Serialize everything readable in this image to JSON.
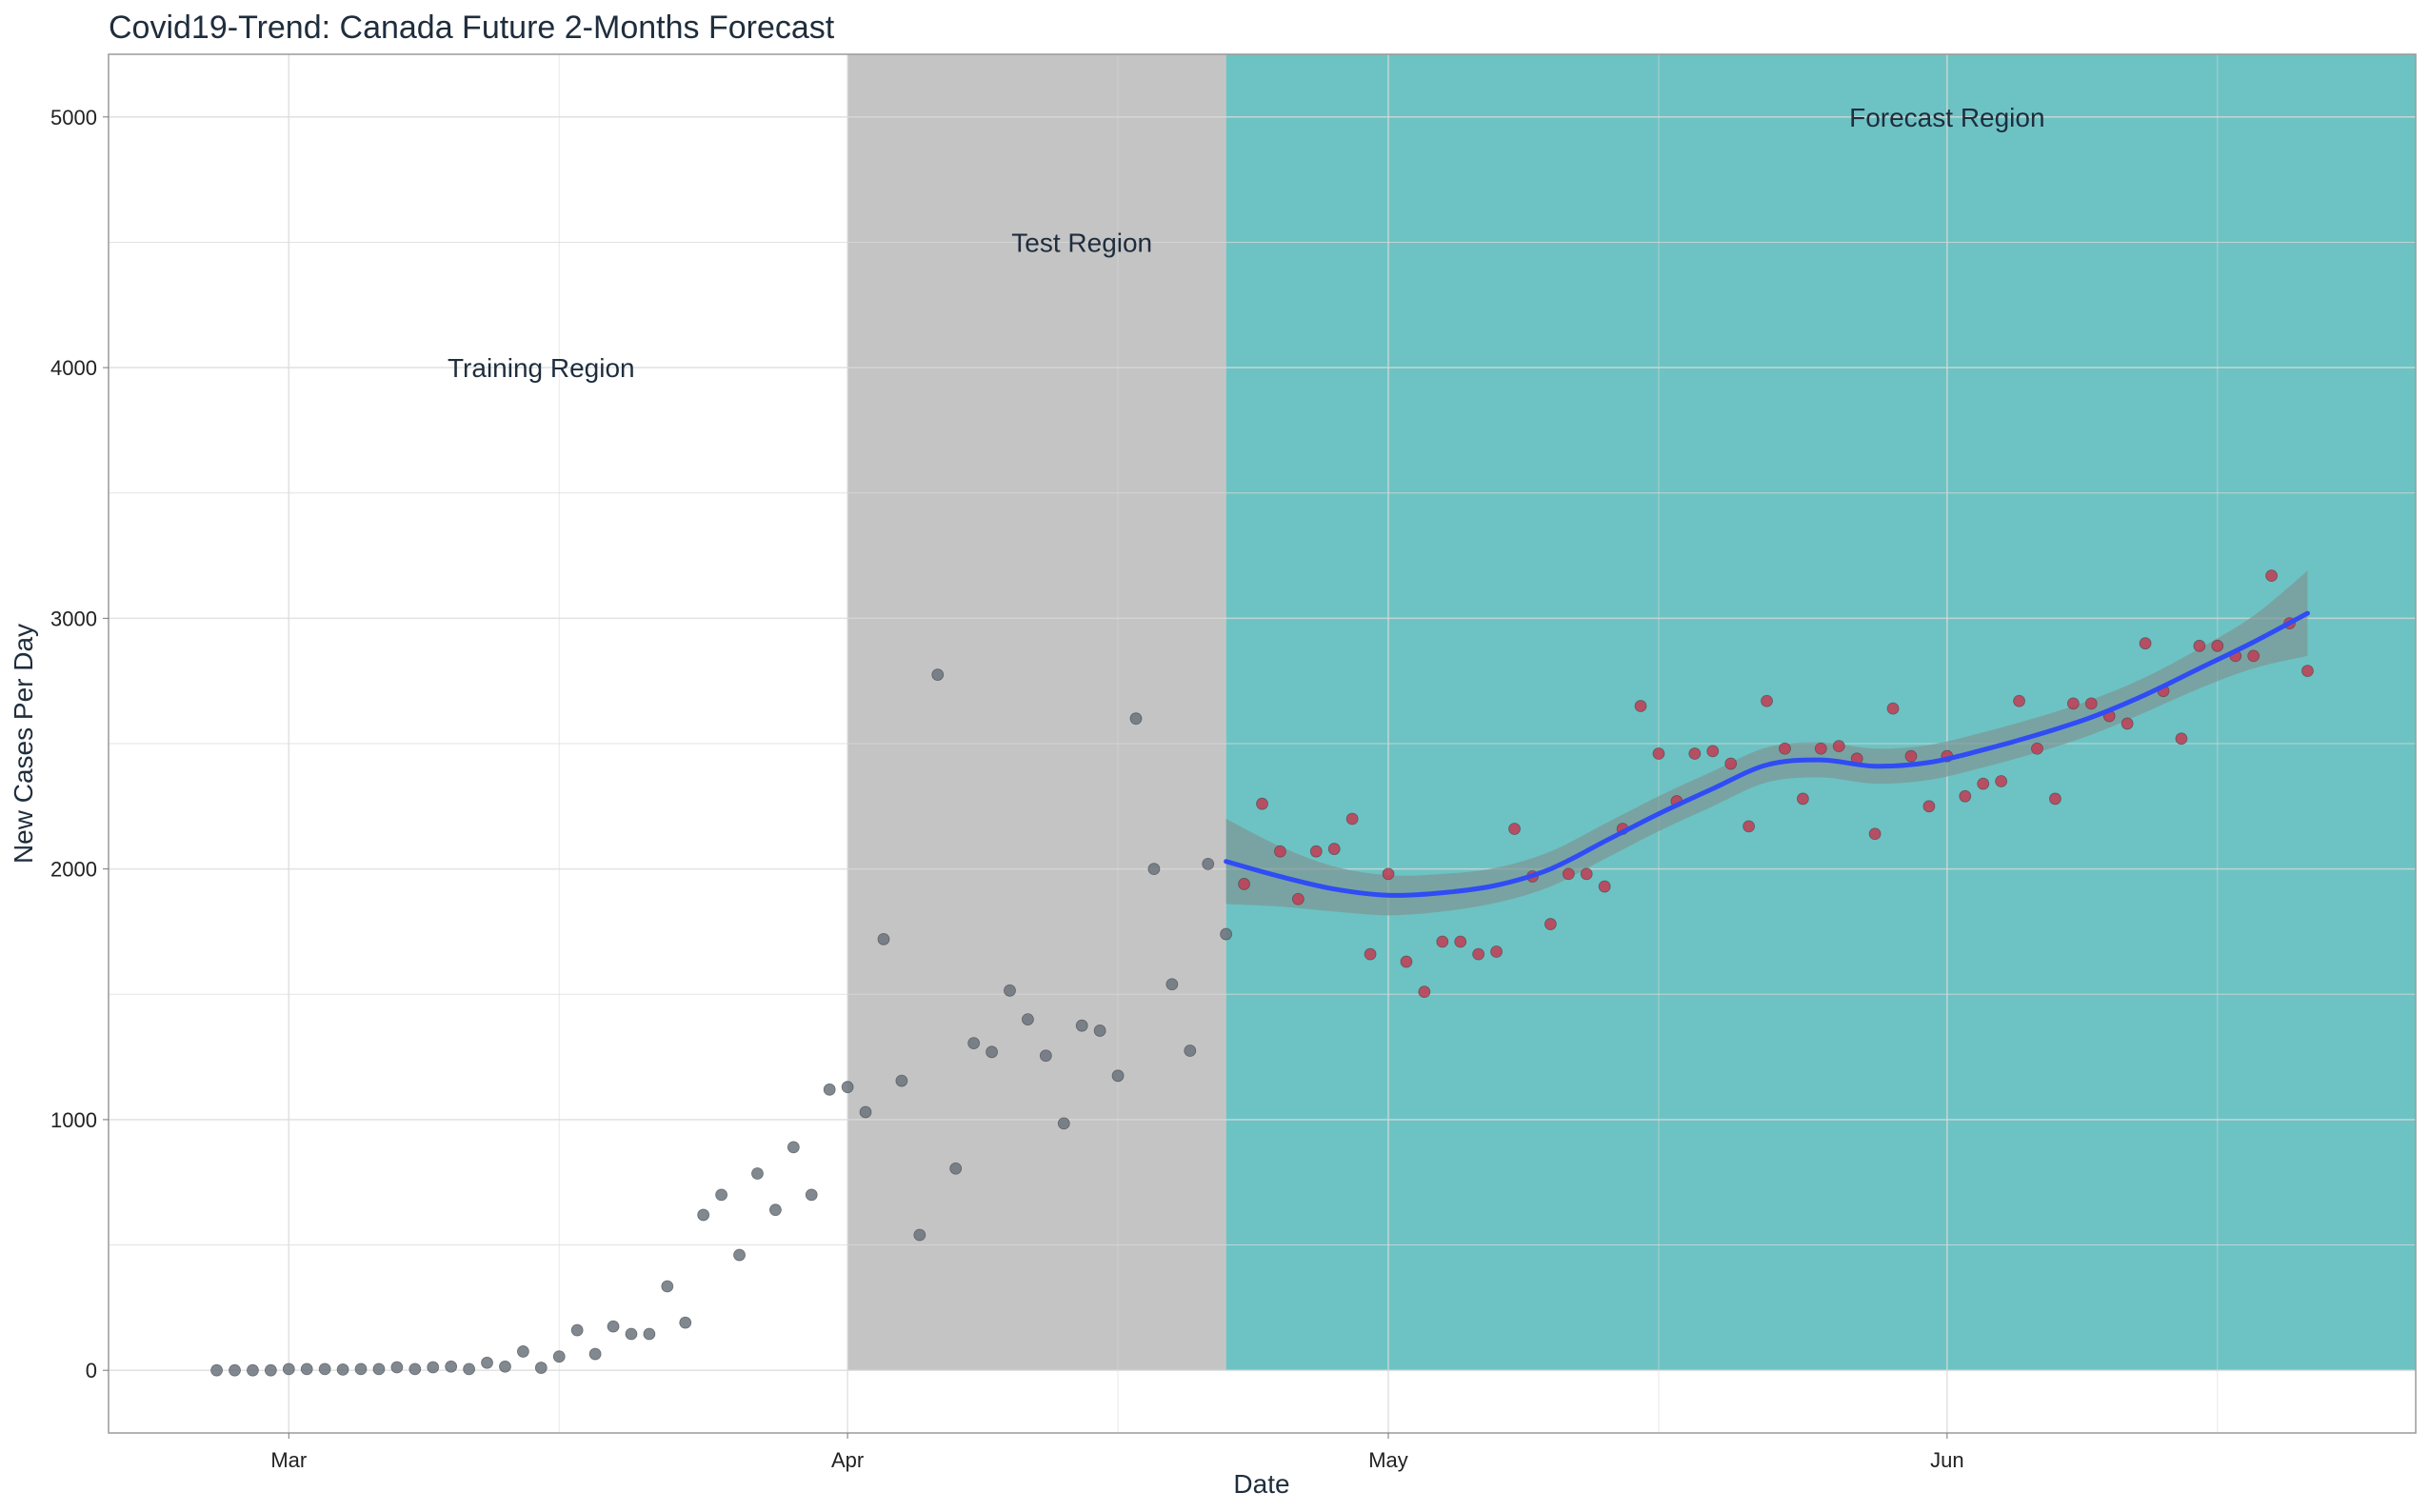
{
  "title": "Covid19-Trend: Canada Future 2-Months Forecast",
  "colors": {
    "training_points": "#6b737b",
    "forecast_points": "#c23b52",
    "test_band": "#c4c4c4",
    "forecast_band": "#6dc3c3",
    "trend_line": "#2f4cf5",
    "confidence_band": "#7f9696",
    "grid": "#d9d9d9"
  },
  "chart_data": {
    "type": "scatter",
    "xlabel": "Date",
    "ylabel": "New Cases Per Day",
    "x_tick_labels": [
      {
        "date": "2020-03-01",
        "label": "Mar"
      },
      {
        "date": "2020-04-01",
        "label": "Apr"
      },
      {
        "date": "2020-05-01",
        "label": "May"
      },
      {
        "date": "2020-06-01",
        "label": "Jun"
      }
    ],
    "y_ticks": [
      0,
      1000,
      2000,
      3000,
      4000,
      5000
    ],
    "xlim": [
      "2020-02-20",
      "2020-06-27"
    ],
    "ylim": [
      -250,
      5250
    ],
    "grid": true,
    "regions": [
      {
        "name": "Training Region",
        "start": "2020-02-20",
        "end": "2020-04-01",
        "label_date": "2020-03-15",
        "label_y": 4000,
        "fill": "none"
      },
      {
        "name": "Test Region",
        "start": "2020-04-01",
        "end": "2020-04-22",
        "label_date": "2020-04-14",
        "label_y": 4500,
        "fill": "test_band"
      },
      {
        "name": "Forecast Region",
        "start": "2020-04-22",
        "end": "2020-06-27",
        "label_date": "2020-06-01",
        "label_y": 5000,
        "fill": "forecast_band"
      }
    ],
    "series": [
      {
        "kind": "observed",
        "points": [
          {
            "x": "2020-02-26",
            "y": 0
          },
          {
            "x": "2020-02-27",
            "y": 0
          },
          {
            "x": "2020-02-28",
            "y": 0
          },
          {
            "x": "2020-02-29",
            "y": 0
          },
          {
            "x": "2020-03-01",
            "y": 5
          },
          {
            "x": "2020-03-02",
            "y": 5
          },
          {
            "x": "2020-03-03",
            "y": 5
          },
          {
            "x": "2020-03-04",
            "y": 3
          },
          {
            "x": "2020-03-05",
            "y": 5
          },
          {
            "x": "2020-03-06",
            "y": 5
          },
          {
            "x": "2020-03-07",
            "y": 12
          },
          {
            "x": "2020-03-08",
            "y": 5
          },
          {
            "x": "2020-03-09",
            "y": 12
          },
          {
            "x": "2020-03-10",
            "y": 15
          },
          {
            "x": "2020-03-11",
            "y": 5
          },
          {
            "x": "2020-03-12",
            "y": 30
          },
          {
            "x": "2020-03-13",
            "y": 15
          },
          {
            "x": "2020-03-14",
            "y": 75
          },
          {
            "x": "2020-03-15",
            "y": 10
          },
          {
            "x": "2020-03-16",
            "y": 55
          },
          {
            "x": "2020-03-17",
            "y": 160
          },
          {
            "x": "2020-03-18",
            "y": 65
          },
          {
            "x": "2020-03-19",
            "y": 175
          },
          {
            "x": "2020-03-20",
            "y": 145
          },
          {
            "x": "2020-03-21",
            "y": 145
          },
          {
            "x": "2020-03-22",
            "y": 335
          },
          {
            "x": "2020-03-23",
            "y": 190
          },
          {
            "x": "2020-03-24",
            "y": 620
          },
          {
            "x": "2020-03-25",
            "y": 700
          },
          {
            "x": "2020-03-26",
            "y": 460
          },
          {
            "x": "2020-03-27",
            "y": 785
          },
          {
            "x": "2020-03-28",
            "y": 640
          },
          {
            "x": "2020-03-29",
            "y": 890
          },
          {
            "x": "2020-03-30",
            "y": 700
          },
          {
            "x": "2020-03-31",
            "y": 1120
          },
          {
            "x": "2020-04-01",
            "y": 1130
          },
          {
            "x": "2020-04-02",
            "y": 1030
          },
          {
            "x": "2020-04-03",
            "y": 1720
          },
          {
            "x": "2020-04-04",
            "y": 1155
          },
          {
            "x": "2020-04-05",
            "y": 540
          },
          {
            "x": "2020-04-06",
            "y": 2775
          },
          {
            "x": "2020-04-07",
            "y": 805
          },
          {
            "x": "2020-04-08",
            "y": 1305
          },
          {
            "x": "2020-04-09",
            "y": 1270
          },
          {
            "x": "2020-04-10",
            "y": 1515
          },
          {
            "x": "2020-04-11",
            "y": 1400
          },
          {
            "x": "2020-04-12",
            "y": 1255
          },
          {
            "x": "2020-04-13",
            "y": 985
          },
          {
            "x": "2020-04-14",
            "y": 1375
          },
          {
            "x": "2020-04-15",
            "y": 1355
          },
          {
            "x": "2020-04-16",
            "y": 1175
          },
          {
            "x": "2020-04-17",
            "y": 2600
          },
          {
            "x": "2020-04-18",
            "y": 2000
          },
          {
            "x": "2020-04-19",
            "y": 1540
          },
          {
            "x": "2020-04-20",
            "y": 1275
          },
          {
            "x": "2020-04-21",
            "y": 2020
          },
          {
            "x": "2020-04-22",
            "y": 1740
          }
        ]
      },
      {
        "kind": "forecast",
        "points": [
          {
            "x": "2020-04-23",
            "y": 1940
          },
          {
            "x": "2020-04-24",
            "y": 2260
          },
          {
            "x": "2020-04-25",
            "y": 2070
          },
          {
            "x": "2020-04-26",
            "y": 1880
          },
          {
            "x": "2020-04-27",
            "y": 2070
          },
          {
            "x": "2020-04-28",
            "y": 2080
          },
          {
            "x": "2020-04-29",
            "y": 2200
          },
          {
            "x": "2020-04-30",
            "y": 1660
          },
          {
            "x": "2020-05-01",
            "y": 1980
          },
          {
            "x": "2020-05-02",
            "y": 1630
          },
          {
            "x": "2020-05-03",
            "y": 1510
          },
          {
            "x": "2020-05-04",
            "y": 1710
          },
          {
            "x": "2020-05-05",
            "y": 1710
          },
          {
            "x": "2020-05-06",
            "y": 1660
          },
          {
            "x": "2020-05-07",
            "y": 1670
          },
          {
            "x": "2020-05-08",
            "y": 2160
          },
          {
            "x": "2020-05-09",
            "y": 1970
          },
          {
            "x": "2020-05-10",
            "y": 1780
          },
          {
            "x": "2020-05-11",
            "y": 1980
          },
          {
            "x": "2020-05-12",
            "y": 1980
          },
          {
            "x": "2020-05-13",
            "y": 1930
          },
          {
            "x": "2020-05-14",
            "y": 2160
          },
          {
            "x": "2020-05-15",
            "y": 2650
          },
          {
            "x": "2020-05-16",
            "y": 2460
          },
          {
            "x": "2020-05-17",
            "y": 2270
          },
          {
            "x": "2020-05-18",
            "y": 2460
          },
          {
            "x": "2020-05-19",
            "y": 2470
          },
          {
            "x": "2020-05-20",
            "y": 2420
          },
          {
            "x": "2020-05-21",
            "y": 2170
          },
          {
            "x": "2020-05-22",
            "y": 2670
          },
          {
            "x": "2020-05-23",
            "y": 2480
          },
          {
            "x": "2020-05-24",
            "y": 2280
          },
          {
            "x": "2020-05-25",
            "y": 2480
          },
          {
            "x": "2020-05-26",
            "y": 2490
          },
          {
            "x": "2020-05-27",
            "y": 2440
          },
          {
            "x": "2020-05-28",
            "y": 2140
          },
          {
            "x": "2020-05-29",
            "y": 2640
          },
          {
            "x": "2020-05-30",
            "y": 2450
          },
          {
            "x": "2020-05-31",
            "y": 2250
          },
          {
            "x": "2020-06-01",
            "y": 2450
          },
          {
            "x": "2020-06-02",
            "y": 2290
          },
          {
            "x": "2020-06-03",
            "y": 2340
          },
          {
            "x": "2020-06-04",
            "y": 2350
          },
          {
            "x": "2020-06-05",
            "y": 2670
          },
          {
            "x": "2020-06-06",
            "y": 2480
          },
          {
            "x": "2020-06-07",
            "y": 2280
          },
          {
            "x": "2020-06-08",
            "y": 2660
          },
          {
            "x": "2020-06-09",
            "y": 2660
          },
          {
            "x": "2020-06-10",
            "y": 2610
          },
          {
            "x": "2020-06-11",
            "y": 2580
          },
          {
            "x": "2020-06-12",
            "y": 2900
          },
          {
            "x": "2020-06-13",
            "y": 2710
          },
          {
            "x": "2020-06-14",
            "y": 2520
          },
          {
            "x": "2020-06-15",
            "y": 2890
          },
          {
            "x": "2020-06-16",
            "y": 2890
          },
          {
            "x": "2020-06-17",
            "y": 2850
          },
          {
            "x": "2020-06-18",
            "y": 2850
          },
          {
            "x": "2020-06-19",
            "y": 3170
          },
          {
            "x": "2020-06-20",
            "y": 2980
          },
          {
            "x": "2020-06-21",
            "y": 2790
          }
        ]
      },
      {
        "kind": "trend",
        "points": [
          {
            "x": "2020-04-22",
            "y": 2030,
            "lo": 1860,
            "hi": 2200
          },
          {
            "x": "2020-04-25",
            "y": 1970,
            "lo": 1850,
            "hi": 2090
          },
          {
            "x": "2020-04-28",
            "y": 1920,
            "lo": 1830,
            "hi": 2010
          },
          {
            "x": "2020-05-01",
            "y": 1895,
            "lo": 1815,
            "hi": 1975
          },
          {
            "x": "2020-05-04",
            "y": 1905,
            "lo": 1830,
            "hi": 1980
          },
          {
            "x": "2020-05-07",
            "y": 1935,
            "lo": 1865,
            "hi": 2005
          },
          {
            "x": "2020-05-10",
            "y": 2000,
            "lo": 1930,
            "hi": 2070
          },
          {
            "x": "2020-05-13",
            "y": 2110,
            "lo": 2040,
            "hi": 2180
          },
          {
            "x": "2020-05-16",
            "y": 2220,
            "lo": 2150,
            "hi": 2290
          },
          {
            "x": "2020-05-19",
            "y": 2320,
            "lo": 2250,
            "hi": 2390
          },
          {
            "x": "2020-05-22",
            "y": 2415,
            "lo": 2345,
            "hi": 2485
          },
          {
            "x": "2020-05-25",
            "y": 2435,
            "lo": 2365,
            "hi": 2505
          },
          {
            "x": "2020-05-28",
            "y": 2410,
            "lo": 2340,
            "hi": 2480
          },
          {
            "x": "2020-05-31",
            "y": 2425,
            "lo": 2355,
            "hi": 2495
          },
          {
            "x": "2020-06-03",
            "y": 2475,
            "lo": 2405,
            "hi": 2545
          },
          {
            "x": "2020-06-06",
            "y": 2535,
            "lo": 2465,
            "hi": 2605
          },
          {
            "x": "2020-06-09",
            "y": 2605,
            "lo": 2535,
            "hi": 2675
          },
          {
            "x": "2020-06-12",
            "y": 2695,
            "lo": 2625,
            "hi": 2765
          },
          {
            "x": "2020-06-15",
            "y": 2800,
            "lo": 2720,
            "hi": 2880
          },
          {
            "x": "2020-06-18",
            "y": 2905,
            "lo": 2800,
            "hi": 3010
          },
          {
            "x": "2020-06-21",
            "y": 3020,
            "lo": 2850,
            "hi": 3190
          }
        ]
      }
    ]
  }
}
